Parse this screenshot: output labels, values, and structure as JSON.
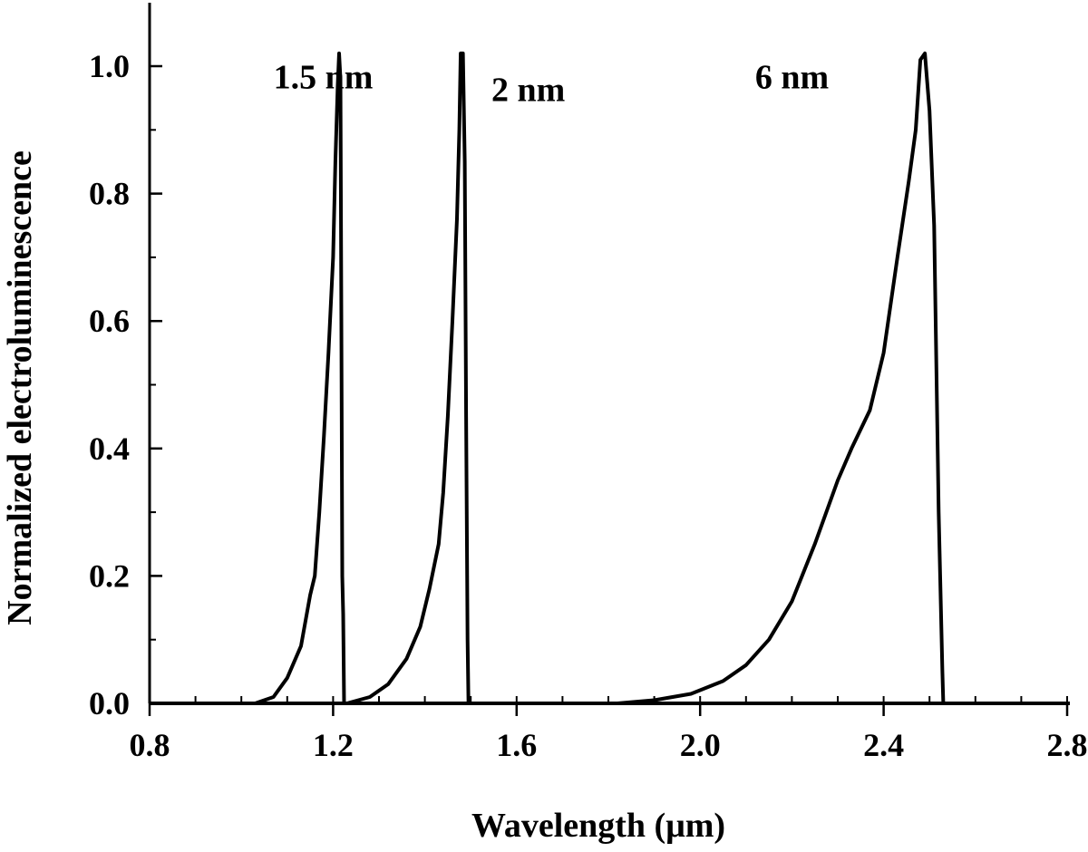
{
  "chart_data": {
    "type": "line",
    "title": "",
    "xlabel": "Wavelength (μm)",
    "ylabel": "Normalized electroluminescence",
    "xlim": [
      0.8,
      2.8
    ],
    "ylim": [
      0.0,
      1.1
    ],
    "x_ticks": [
      0.8,
      1.2,
      1.6,
      2.0,
      2.4,
      2.8
    ],
    "x_tick_labels": [
      "0.8",
      "1.2",
      "1.6",
      "2.0",
      "2.4",
      "2.8"
    ],
    "y_ticks": [
      0.0,
      0.2,
      0.4,
      0.6,
      0.8,
      1.0
    ],
    "y_tick_labels": [
      "0.0",
      "0.2",
      "0.4",
      "0.6",
      "0.8",
      "1.0"
    ],
    "x_minor_step": 0.1,
    "y_minor_step": 0.1,
    "grid": false,
    "legend": "none",
    "line_color": "#000000",
    "series": [
      {
        "name": "1.5 nm",
        "points": [
          [
            0.8,
            0.0
          ],
          [
            1.03,
            0.0
          ],
          [
            1.07,
            0.01
          ],
          [
            1.1,
            0.04
          ],
          [
            1.13,
            0.09
          ],
          [
            1.15,
            0.17
          ],
          [
            1.16,
            0.2
          ],
          [
            1.17,
            0.3
          ],
          [
            1.18,
            0.42
          ],
          [
            1.19,
            0.55
          ],
          [
            1.2,
            0.7
          ],
          [
            1.205,
            0.85
          ],
          [
            1.21,
            0.97
          ],
          [
            1.213,
            1.02
          ],
          [
            1.216,
            0.98
          ],
          [
            1.218,
            0.6
          ],
          [
            1.22,
            0.2
          ],
          [
            1.222,
            0.14
          ],
          [
            1.224,
            0.0
          ],
          [
            2.8,
            0.0
          ]
        ]
      },
      {
        "name": "2 nm",
        "points": [
          [
            0.8,
            0.0
          ],
          [
            1.23,
            0.0
          ],
          [
            1.28,
            0.01
          ],
          [
            1.32,
            0.03
          ],
          [
            1.36,
            0.07
          ],
          [
            1.39,
            0.12
          ],
          [
            1.41,
            0.18
          ],
          [
            1.43,
            0.25
          ],
          [
            1.44,
            0.33
          ],
          [
            1.45,
            0.45
          ],
          [
            1.46,
            0.6
          ],
          [
            1.47,
            0.76
          ],
          [
            1.475,
            0.9
          ],
          [
            1.478,
            1.02
          ],
          [
            1.483,
            1.02
          ],
          [
            1.487,
            0.85
          ],
          [
            1.49,
            0.45
          ],
          [
            1.493,
            0.1
          ],
          [
            1.495,
            0.0
          ],
          [
            2.8,
            0.0
          ]
        ]
      },
      {
        "name": "6 nm",
        "points": [
          [
            0.8,
            0.0
          ],
          [
            1.82,
            0.0
          ],
          [
            1.9,
            0.005
          ],
          [
            1.98,
            0.015
          ],
          [
            2.05,
            0.035
          ],
          [
            2.1,
            0.06
          ],
          [
            2.15,
            0.1
          ],
          [
            2.2,
            0.16
          ],
          [
            2.25,
            0.25
          ],
          [
            2.3,
            0.35
          ],
          [
            2.33,
            0.4
          ],
          [
            2.37,
            0.46
          ],
          [
            2.4,
            0.55
          ],
          [
            2.43,
            0.7
          ],
          [
            2.455,
            0.82
          ],
          [
            2.47,
            0.9
          ],
          [
            2.48,
            1.01
          ],
          [
            2.49,
            1.02
          ],
          [
            2.5,
            0.93
          ],
          [
            2.51,
            0.75
          ],
          [
            2.52,
            0.3
          ],
          [
            2.528,
            0.05
          ],
          [
            2.53,
            0.0
          ],
          [
            2.8,
            0.0
          ]
        ]
      }
    ],
    "annotations": [
      {
        "text": "1.5 nm",
        "x": 1.07,
        "y": 0.965
      },
      {
        "text": "2 nm",
        "x": 1.545,
        "y": 0.945
      },
      {
        "text": "6 nm",
        "x": 2.12,
        "y": 0.965
      }
    ]
  }
}
